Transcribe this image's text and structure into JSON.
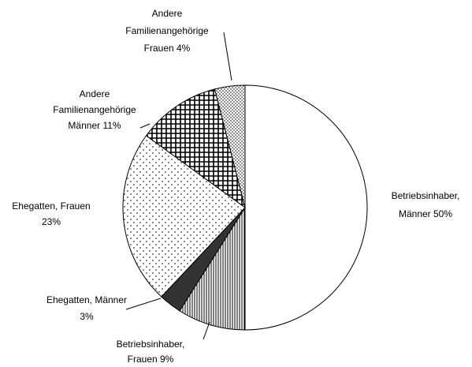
{
  "chart_data": {
    "type": "pie",
    "labels": [
      [
        "Betriebsinhaber,",
        "Männer 50%"
      ],
      [
        "Betriebsinhaber,",
        "Frauen 9%"
      ],
      [
        "Ehegatten, Männer",
        "3%"
      ],
      [
        "Ehegatten, Frauen",
        "23%"
      ],
      [
        "Andere",
        "Familienangehörige",
        "Männer 11%"
      ],
      [
        "Andere",
        "Familienangehörige",
        "Frauen 4%"
      ]
    ],
    "values": [
      50,
      9,
      3,
      23,
      11,
      4
    ],
    "patterns": [
      "none",
      "vertical",
      "solid",
      "dots",
      "grid",
      "dense-dots"
    ]
  }
}
